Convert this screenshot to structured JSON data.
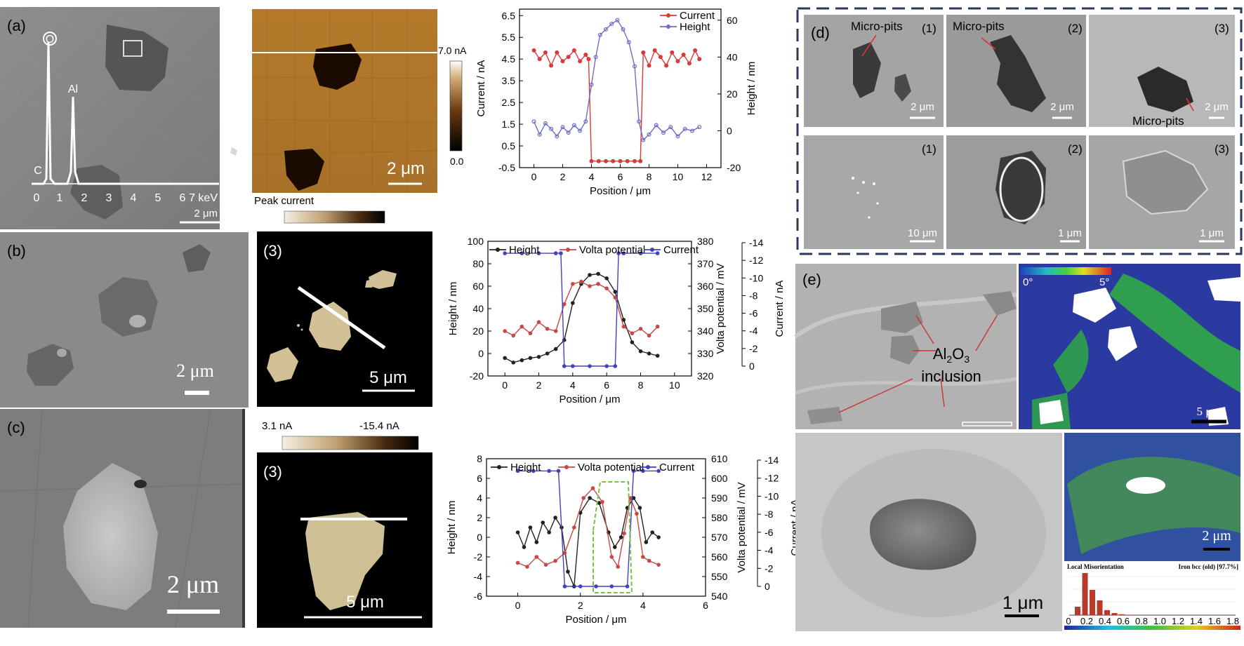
{
  "panel_labels": {
    "a": "(a)",
    "b": "(b)",
    "c": "(c)",
    "d": "(d)",
    "e": "(e)"
  },
  "sem_a": {
    "edx_peaks": {
      "o": "O",
      "al": "Al",
      "c": "C"
    },
    "edx_axis": [
      "0",
      "1",
      "2",
      "3",
      "4",
      "5",
      "6"
    ],
    "edx_axis_last": "7 keV",
    "scale": "2 μm"
  },
  "afm_a": {
    "colorbar_max": "7.0 nA",
    "colorbar_min": "0.0",
    "scale": "2 μm",
    "peak_current_label": "Peak current"
  },
  "sem_b": {
    "scale": "2 μm"
  },
  "map_b": {
    "tag": "(3)",
    "scale": "5 μm"
  },
  "sem_c": {
    "scale": "2 μm"
  },
  "map_c": {
    "tag": "(3)",
    "scale": "5 μm",
    "colorbar_left": "3.1 nA",
    "colorbar_right": "-15.4 nA"
  },
  "panel_d": {
    "micro_pits": "Micro-pits",
    "tags": [
      "(1)",
      "(2)",
      "(3)"
    ],
    "scales_top": [
      "2 μm",
      "2 μm",
      "2 μm"
    ],
    "scales_bottom": [
      "10 μm",
      "1 μm",
      "1 μm"
    ]
  },
  "panel_e": {
    "inclusion_line1": "Al2O3",
    "inclusion_line2": "inclusion",
    "kam_min": "0°",
    "kam_max": "5°",
    "scale_kam": "5 μm",
    "scale_sem": "1 μm",
    "scale_kam2": "2 μm",
    "hist_title_left": "Local Misorientation",
    "hist_title_right": "Iron bcc (old) [97.7%]",
    "hist_ticks": [
      "0",
      "0.2",
      "0.4",
      "0.6",
      "0.8",
      "1.0",
      "1.2",
      "1.4",
      "1.6",
      "1.8"
    ]
  },
  "colors": {
    "current": "#d9393a",
    "height_blue": "#6c6cc4",
    "height_black": "#222222",
    "volta": "#c84848",
    "current_blue": "#4040c0",
    "green_dash": "#7ac142"
  },
  "chart_data": [
    {
      "type": "line",
      "xlabel": "Position / μm",
      "ylabel": "Current / nA",
      "y2label": "Height / nm",
      "xlim": [
        -1,
        13
      ],
      "xticks": [
        "0",
        "2",
        "4",
        "6",
        "8",
        "10",
        "12"
      ],
      "ylim": [
        -0.5,
        6.8
      ],
      "yticks": [
        "-0.5",
        "0.5",
        "1.5",
        "2.5",
        "3.5",
        "4.5",
        "5.5",
        "6.5"
      ],
      "y2lim": [
        -20,
        66
      ],
      "y2ticks": [
        "-20",
        "0",
        "20",
        "40",
        "60"
      ],
      "legend": "top-right",
      "series": [
        {
          "name": "Current",
          "axis": "left",
          "x": [
            0,
            0.4,
            0.8,
            1.2,
            1.6,
            2.0,
            2.4,
            2.8,
            3.2,
            3.6,
            3.8,
            4.0,
            4.5,
            5.0,
            5.5,
            6.0,
            6.5,
            7.0,
            7.4,
            7.6,
            8.0,
            8.4,
            8.8,
            9.2,
            9.6,
            10.0,
            10.4,
            10.8,
            11.2,
            11.5
          ],
          "y": [
            4.9,
            4.5,
            4.8,
            4.2,
            4.8,
            4.4,
            4.6,
            4.9,
            4.4,
            4.7,
            4.5,
            -0.2,
            -0.2,
            -0.2,
            -0.2,
            -0.2,
            -0.2,
            -0.2,
            -0.2,
            4.8,
            4.2,
            4.9,
            4.6,
            4.2,
            4.8,
            4.4,
            4.7,
            4.3,
            4.9,
            4.5
          ]
        },
        {
          "name": "Height",
          "axis": "right",
          "x": [
            0,
            0.4,
            0.8,
            1.2,
            1.6,
            2.0,
            2.4,
            2.8,
            3.2,
            3.6,
            4.0,
            4.3,
            4.6,
            5.0,
            5.4,
            5.8,
            6.2,
            6.6,
            7.0,
            7.3,
            7.6,
            8.0,
            8.5,
            9.0,
            9.5,
            10.0,
            10.5,
            11.0,
            11.5
          ],
          "y": [
            5,
            -2,
            4,
            1,
            -3,
            2,
            -1,
            3,
            0,
            5,
            25,
            40,
            52,
            55,
            58,
            60,
            55,
            48,
            35,
            5,
            -5,
            -2,
            3,
            -1,
            2,
            -3,
            1,
            0,
            2
          ]
        }
      ]
    },
    {
      "type": "line",
      "xlabel": "Position / μm",
      "ylabel": "Height / nm",
      "y2label": "Volta potential / mV",
      "y3label": "Current / nA",
      "xlim": [
        -1,
        11
      ],
      "xticks": [
        "0",
        "2",
        "4",
        "6",
        "8",
        "10"
      ],
      "ylim": [
        -20,
        100
      ],
      "yticks": [
        "-20",
        "0",
        "20",
        "40",
        "60",
        "80",
        "100"
      ],
      "y2lim": [
        320,
        380
      ],
      "y2ticks": [
        "320",
        "330",
        "340",
        "350",
        "360",
        "370",
        "380"
      ],
      "y3ticks": [
        "0",
        "-2",
        "-4",
        "-6",
        "-8",
        "-10",
        "-12",
        "-14"
      ],
      "legend": "top",
      "series": [
        {
          "name": "Height",
          "axis": "left",
          "x": [
            0,
            0.5,
            1.0,
            1.5,
            2.0,
            2.5,
            3.0,
            3.5,
            4.0,
            4.5,
            5.0,
            5.5,
            6.0,
            6.5,
            7.0,
            7.5,
            8.0,
            8.5,
            9.0
          ],
          "y": [
            -4,
            -8,
            -6,
            -4,
            -3,
            0,
            4,
            12,
            45,
            62,
            70,
            71,
            67,
            55,
            30,
            10,
            2,
            0,
            -2
          ]
        },
        {
          "name": "Volta potential",
          "axis": "right",
          "x": [
            0,
            0.5,
            1.0,
            1.5,
            2.0,
            2.5,
            3.0,
            3.5,
            4.0,
            4.5,
            5.0,
            5.5,
            6.0,
            6.5,
            7.0,
            7.5,
            8.0,
            8.5,
            9.0
          ],
          "y": [
            340,
            338,
            342,
            339,
            344,
            341,
            340,
            352,
            361,
            362,
            360,
            361,
            359,
            355,
            342,
            339,
            341,
            338,
            342
          ]
        },
        {
          "name": "Current",
          "axis": "right2",
          "x": [
            0,
            1,
            2,
            3,
            3.3,
            3.5,
            4,
            5,
            6,
            6.5,
            6.7,
            7,
            8,
            9
          ],
          "y": [
            -12.8,
            -12.8,
            -12.8,
            -12.8,
            -12.8,
            0,
            0,
            0,
            0,
            0,
            -12.8,
            -12.8,
            -12.8,
            -12.8
          ]
        }
      ]
    },
    {
      "type": "line",
      "xlabel": "Position / μm",
      "ylabel": "Height / nm",
      "y2label": "Volta potential / mV",
      "y3label": "Current / nA",
      "xlim": [
        -1,
        6
      ],
      "xticks": [
        "0",
        "2",
        "4",
        "6"
      ],
      "ylim": [
        -6,
        8
      ],
      "yticks": [
        "-6",
        "-4",
        "-2",
        "0",
        "2",
        "4",
        "6",
        "8"
      ],
      "y2lim": [
        540,
        610
      ],
      "y2ticks": [
        "540",
        "550",
        "560",
        "570",
        "580",
        "590",
        "600",
        "610"
      ],
      "y3ticks": [
        "0",
        "-2",
        "-4",
        "-6",
        "-8",
        "-10",
        "-12",
        "-14"
      ],
      "legend": "top",
      "series": [
        {
          "name": "Height",
          "axis": "left",
          "x": [
            0,
            0.2,
            0.4,
            0.6,
            0.8,
            1.0,
            1.2,
            1.4,
            1.6,
            1.8,
            2.0,
            2.3,
            2.6,
            2.9,
            3.1,
            3.3,
            3.5,
            3.7,
            3.9,
            4.1,
            4.3,
            4.5
          ],
          "y": [
            0.5,
            -1.0,
            1.0,
            -0.5,
            1.5,
            0.5,
            2.0,
            1.0,
            -3.5,
            -5.0,
            2.5,
            4.0,
            3.5,
            0.5,
            -1.0,
            0.0,
            3.0,
            4.0,
            3.0,
            -0.5,
            0.5,
            0.0
          ]
        },
        {
          "name": "Volta potential",
          "axis": "right",
          "x": [
            0,
            0.3,
            0.6,
            0.9,
            1.2,
            1.5,
            1.8,
            2.1,
            2.4,
            2.7,
            3.0,
            3.2,
            3.4,
            3.6,
            3.8,
            4.0,
            4.2,
            4.5
          ],
          "y": [
            557,
            555,
            560,
            556,
            558,
            562,
            575,
            590,
            595,
            588,
            560,
            555,
            572,
            590,
            582,
            560,
            558,
            556
          ]
        },
        {
          "name": "Current",
          "axis": "right2",
          "x": [
            0,
            0.5,
            1.0,
            1.3,
            1.5,
            2.0,
            2.5,
            3.0,
            3.5,
            3.7,
            4.0,
            4.5
          ],
          "y": [
            -12.8,
            -12.8,
            -12.8,
            -12.8,
            0,
            0,
            0,
            0,
            0,
            -12.8,
            -12.8,
            -12.8
          ]
        }
      ]
    },
    {
      "type": "bar",
      "title": "Local Misorientation",
      "categories": [
        "0.1",
        "0.2",
        "0.3",
        "0.4",
        "0.5",
        "0.6",
        "0.7",
        "0.8"
      ],
      "values": [
        0.2,
        1.0,
        0.6,
        0.35,
        0.12,
        0.05,
        0.02,
        0.01
      ]
    }
  ]
}
